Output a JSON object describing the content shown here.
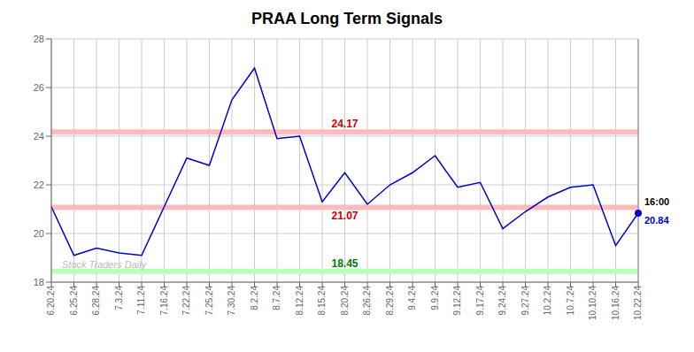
{
  "chart_data": {
    "type": "line",
    "title": "PRAA Long Term Signals",
    "categories": [
      "6.20.24",
      "6.25.24",
      "6.28.24",
      "7.3.24",
      "7.11.24",
      "7.16.24",
      "7.22.24",
      "7.25.24",
      "7.30.24",
      "8.2.24",
      "8.7.24",
      "8.12.24",
      "8.15.24",
      "8.20.24",
      "8.26.24",
      "8.29.24",
      "9.4.24",
      "9.9.24",
      "9.12.24",
      "9.17.24",
      "9.24.24",
      "9.27.24",
      "10.2.24",
      "10.7.24",
      "10.10.24",
      "10.16.24",
      "10.22.24"
    ],
    "values": [
      21.1,
      19.1,
      19.4,
      19.2,
      19.1,
      21.1,
      23.1,
      22.8,
      25.5,
      26.8,
      23.9,
      24.0,
      21.3,
      22.5,
      21.2,
      22.0,
      22.5,
      23.2,
      21.9,
      22.1,
      20.2,
      20.9,
      21.5,
      21.9,
      22.0,
      19.5,
      20.84
    ],
    "color": "#0000cc",
    "ylim": [
      18,
      28
    ],
    "yticks": [
      18,
      20,
      22,
      24,
      26,
      28
    ],
    "grid": true,
    "hlines": [
      {
        "value": 24.17,
        "label": "24.17",
        "color": "#ffbbbb",
        "label_color": "#cc0000"
      },
      {
        "value": 21.07,
        "label": "21.07",
        "color": "#ffbbbb",
        "label_color": "#cc0000"
      },
      {
        "value": 18.45,
        "label": "18.45",
        "color": "#bbffbb",
        "label_color": "#007700"
      }
    ],
    "end_labels": [
      {
        "text": "16:00",
        "color": "#000000"
      },
      {
        "text": "20.84",
        "color": "#0000cc"
      }
    ],
    "watermark": {
      "text": "Stock Traders Daily",
      "color": "#bbbbbb"
    }
  }
}
